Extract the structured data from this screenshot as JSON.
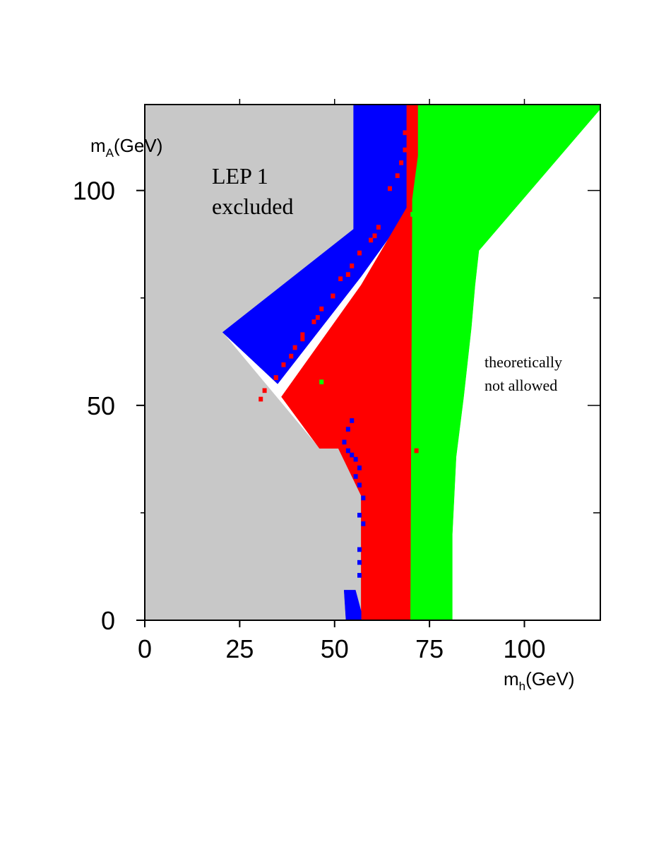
{
  "chart_data": {
    "type": "region-map",
    "xlabel": {
      "main": "m",
      "sub": "h",
      "unit": "(GeV)"
    },
    "ylabel": {
      "main": "m",
      "sub": "A",
      "unit": "(GeV)"
    },
    "xlim": [
      0,
      120
    ],
    "ylim": [
      0,
      120
    ],
    "x_ticks": [
      0,
      25,
      50,
      75,
      100
    ],
    "x_tick_labels": [
      "0",
      "25",
      "50",
      "75",
      "100"
    ],
    "y_ticks": [
      0,
      50,
      100
    ],
    "y_tick_labels": [
      "0",
      "50",
      "100"
    ],
    "x_minor_ticks": [
      25,
      50,
      75,
      100
    ],
    "y_minor_ticks": [
      25,
      75
    ],
    "annotations": {
      "lep_line1": "LEP 1",
      "lep_line2": "excluded",
      "theory_line1": "theoretically",
      "theory_line2": "not allowed"
    },
    "regions": [
      {
        "name": "lep1-excluded",
        "color": "#c8c8c8",
        "polygon": [
          [
            0,
            0
          ],
          [
            0,
            120
          ],
          [
            55,
            120
          ],
          [
            55,
            91
          ],
          [
            20.5,
            67
          ],
          [
            46,
            40
          ],
          [
            51,
            40
          ],
          [
            57,
            29
          ],
          [
            57,
            0
          ]
        ]
      },
      {
        "name": "blue",
        "color": "#0000ff",
        "polygon": [
          [
            55,
            120
          ],
          [
            70,
            120
          ],
          [
            70,
            96
          ],
          [
            57,
            80
          ],
          [
            35,
            55
          ],
          [
            20.5,
            67
          ],
          [
            55,
            91
          ]
        ]
      },
      {
        "name": "red",
        "color": "#ff0000",
        "polygon": [
          [
            70,
            120
          ],
          [
            72,
            120
          ],
          [
            72,
            108
          ],
          [
            70.5,
            98
          ],
          [
            70,
            0
          ],
          [
            57,
            0
          ],
          [
            57,
            29
          ],
          [
            51,
            40
          ],
          [
            46,
            40
          ],
          [
            36,
            52
          ],
          [
            57,
            78
          ],
          [
            69,
            96
          ],
          [
            69,
            120
          ]
        ]
      },
      {
        "name": "green",
        "color": "#00ff00",
        "polygon": [
          [
            72,
            120
          ],
          [
            121,
            120
          ],
          [
            88,
            86
          ],
          [
            87,
            78
          ],
          [
            86,
            68
          ],
          [
            84,
            52
          ],
          [
            82,
            38
          ],
          [
            81,
            20
          ],
          [
            81,
            0
          ],
          [
            70,
            0
          ],
          [
            70.5,
            98
          ],
          [
            72,
            108
          ]
        ]
      },
      {
        "name": "blue-lower",
        "color": "#0000ff",
        "polygon": [
          [
            52.5,
            7
          ],
          [
            55.5,
            7
          ],
          [
            57,
            2
          ],
          [
            57,
            0
          ],
          [
            53,
            0
          ]
        ]
      }
    ]
  }
}
